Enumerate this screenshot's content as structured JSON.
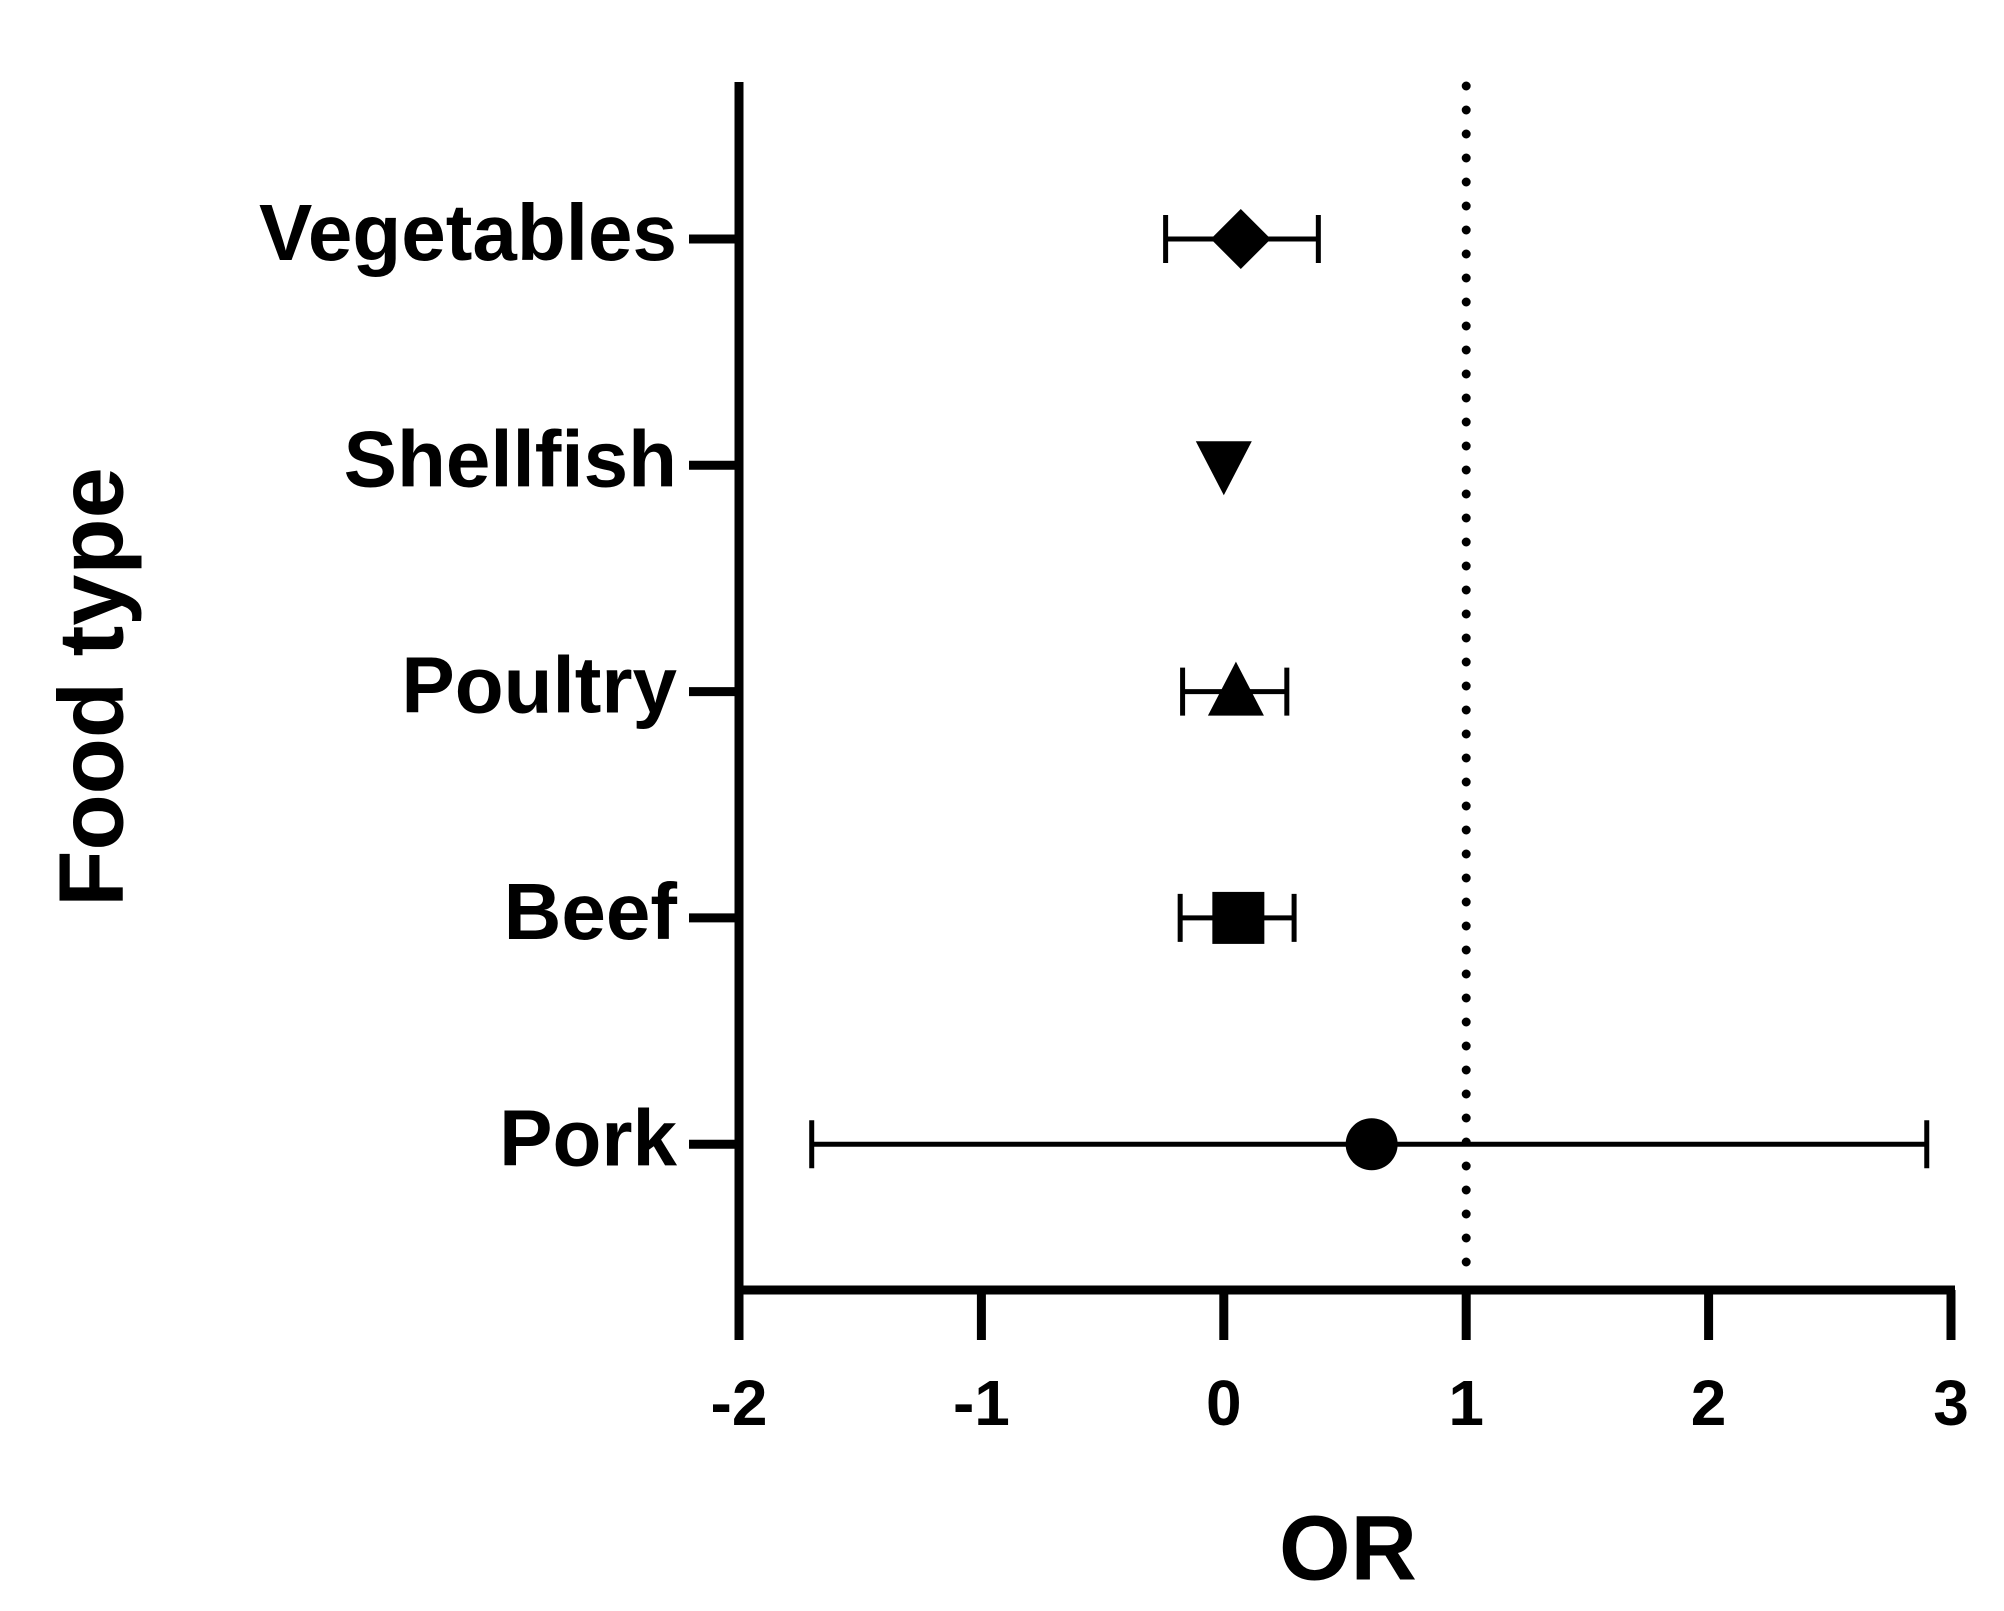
{
  "chart_data": {
    "type": "forest",
    "x_label": "OR",
    "y_label": "Food type",
    "categories": [
      "Vegetables",
      "Shellfish",
      "Poultry",
      "Beef",
      "Pork"
    ],
    "values": [
      0.07,
      0.0,
      0.05,
      0.06,
      0.61
    ],
    "lower": [
      -0.24,
      null,
      -0.17,
      -0.18,
      -1.7
    ],
    "upper": [
      0.39,
      null,
      0.26,
      0.29,
      2.9
    ],
    "markers": [
      "diamond",
      "triangle-down",
      "triangle",
      "square",
      "circle"
    ],
    "color": "#000000",
    "reference_line": 1,
    "xlim": [
      -2,
      3
    ],
    "xticks": [
      -2,
      -1,
      0,
      1,
      2,
      3
    ]
  }
}
